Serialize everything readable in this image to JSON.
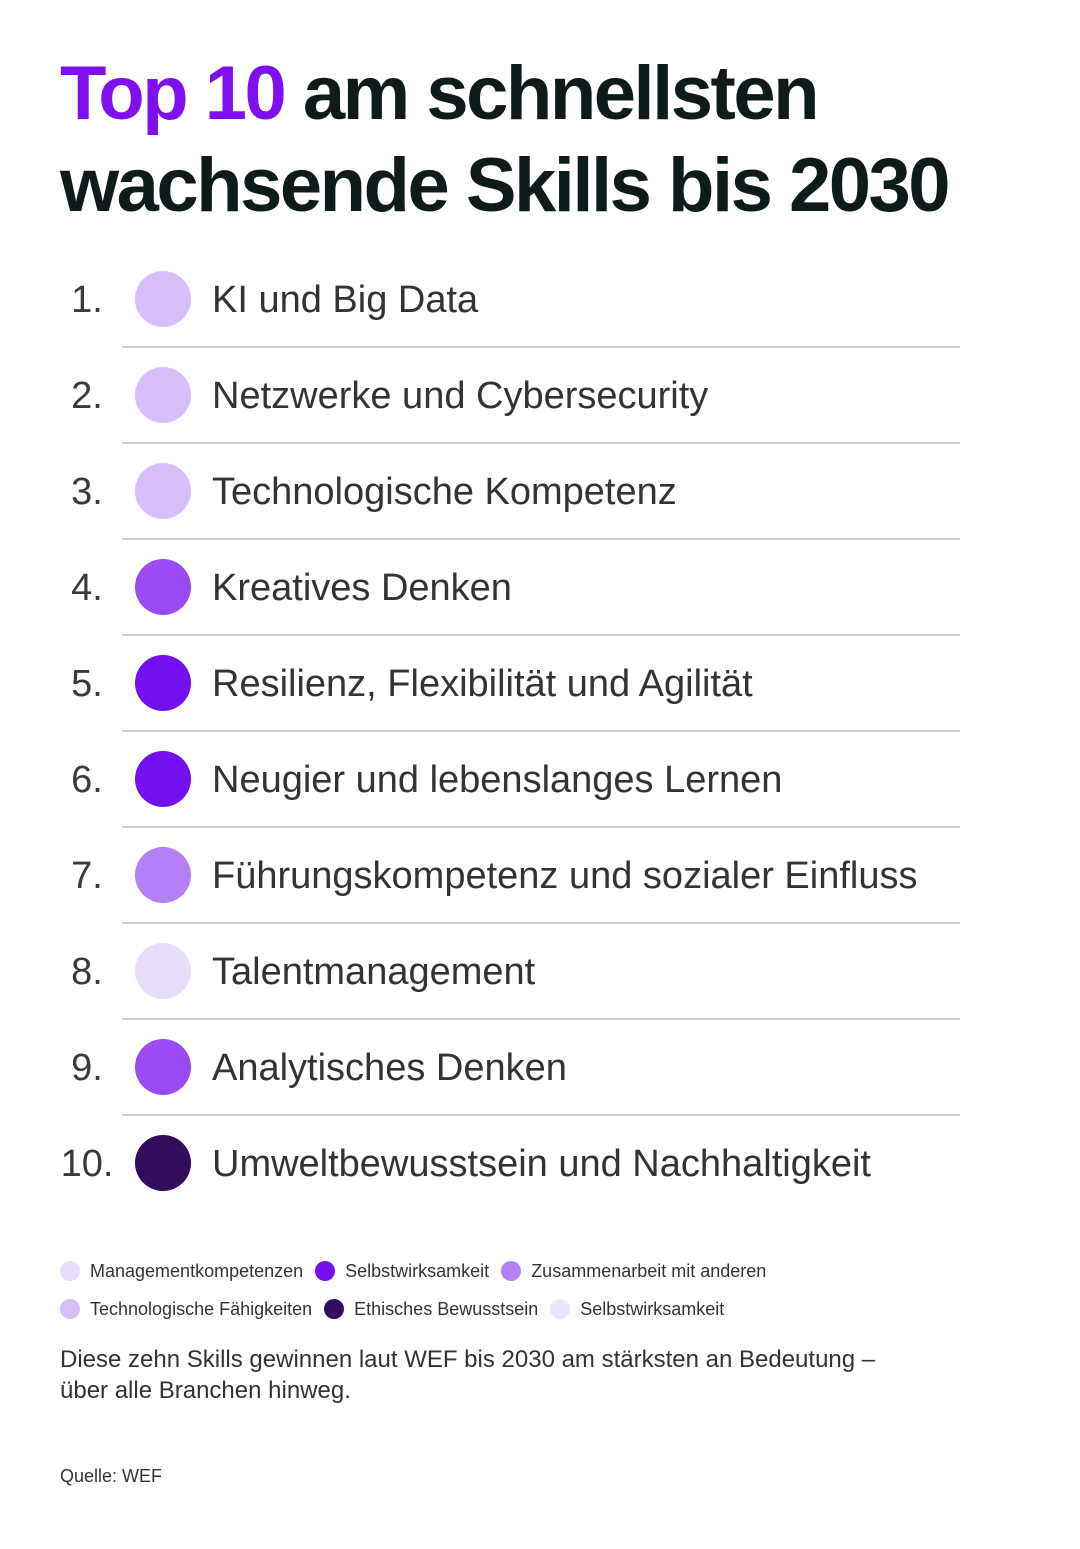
{
  "title": {
    "highlight": "Top 10",
    "rest_line1": "am schnellsten",
    "line2": "wachsende Skills bis 2030"
  },
  "colors": {
    "accent": "#7e10f0",
    "Managementkompetenzen": "#e8dcfb",
    "Selbstwirksamkeit": "#7410f0",
    "Zusammenarbeit mit anderen": "#b380f7",
    "Technologische Fähigkeiten": "#d8bef9",
    "Ethisches Bewusstsein": "#340c5c",
    "Selbstwirksamkeit (hell)": "#ece2fb"
  },
  "chart_data": {
    "type": "table",
    "rows": [
      {
        "rank": "1.",
        "skill": "KI und Big Data",
        "color": "#d8bef9"
      },
      {
        "rank": "2.",
        "skill": "Netzwerke und Cybersecurity",
        "color": "#d8bef9"
      },
      {
        "rank": "3.",
        "skill": "Technologische Kompetenz",
        "color": "#d8bef9"
      },
      {
        "rank": "4.",
        "skill": "Kreatives Denken",
        "color": "#9a4bf6"
      },
      {
        "rank": "5.",
        "skill": "Resilienz, Flexibilität und Agilität",
        "color": "#7410f0"
      },
      {
        "rank": "6.",
        "skill": "Neugier und lebenslanges Lernen",
        "color": "#7410f0"
      },
      {
        "rank": "7.",
        "skill": "Führungskompetenz und sozialer Einfluss",
        "color": "#b380f7"
      },
      {
        "rank": "8.",
        "skill": "Talentmanagement",
        "color": "#e8dcfb"
      },
      {
        "rank": "9.",
        "skill": "Analytisches Denken",
        "color": "#9a4bf6"
      },
      {
        "rank": "10.",
        "skill": "Umweltbewusstsein und Nachhaltigkeit",
        "color": "#340c5c"
      }
    ],
    "legend": [
      [
        {
          "label": "Managementkompetenzen",
          "color": "#e8dcfb"
        },
        {
          "label": "Selbstwirksamkeit",
          "color": "#7410f0"
        },
        {
          "label": "Zusammenarbeit mit anderen",
          "color": "#b380f7"
        }
      ],
      [
        {
          "label": "Technologische Fähigkeiten",
          "color": "#d8bef9"
        },
        {
          "label": "Ethisches Bewusstsein",
          "color": "#340c5c"
        },
        {
          "label": "Selbstwirksamkeit",
          "color": "#ece2fb"
        }
      ]
    ]
  },
  "note": {
    "line1": "Diese zehn Skills gewinnen laut WEF bis 2030 am stärksten an Bedeutung –",
    "line2": "über alle Branchen hinweg."
  },
  "source": "Quelle: WEF"
}
